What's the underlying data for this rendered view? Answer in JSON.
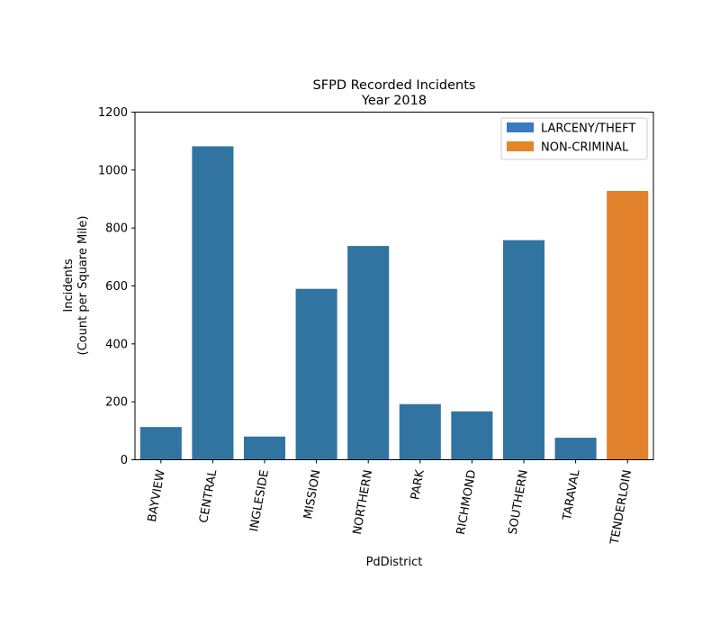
{
  "chart_data": {
    "type": "bar",
    "title": "SFPD Recorded Incidents",
    "subtitle": "Year 2018",
    "xlabel": "PdDistrict",
    "ylabel_line1": "Incidents",
    "ylabel_line2": "(Count per Square Mile)",
    "ylim": [
      0,
      1200
    ],
    "yticks": [
      0,
      200,
      400,
      600,
      800,
      1000,
      1200
    ],
    "grid": false,
    "legend_placement": "top-right",
    "categories": [
      "BAYVIEW",
      "CENTRAL",
      "INGLESIDE",
      "MISSION",
      "NORTHERN",
      "PARK",
      "RICHMOND",
      "SOUTHERN",
      "TARAVAL",
      "TENDERLOIN"
    ],
    "values": [
      113,
      1082,
      80,
      590,
      738,
      192,
      167,
      758,
      76,
      928
    ],
    "top_category": [
      "LARCENY/THEFT",
      "LARCENY/THEFT",
      "LARCENY/THEFT",
      "LARCENY/THEFT",
      "LARCENY/THEFT",
      "LARCENY/THEFT",
      "LARCENY/THEFT",
      "LARCENY/THEFT",
      "LARCENY/THEFT",
      "NON-CRIMINAL"
    ],
    "legend": [
      {
        "label": "LARCENY/THEFT",
        "color": "#3274a1"
      },
      {
        "label": "NON-CRIMINAL",
        "color": "#e1812c"
      }
    ],
    "legend_swatch_colors": [
      "#3a78c4",
      "#e58428"
    ]
  }
}
